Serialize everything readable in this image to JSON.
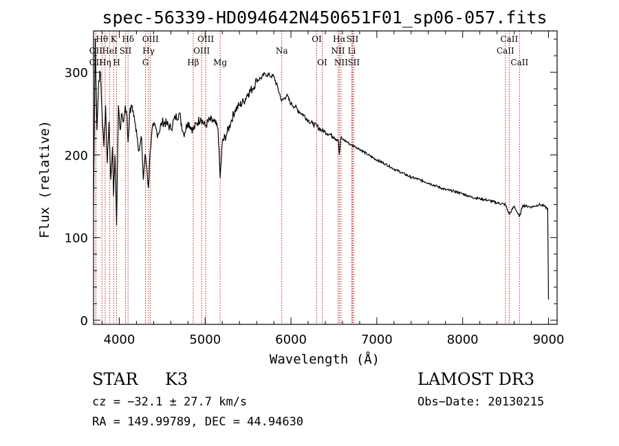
{
  "chart_data": {
    "type": "line",
    "title": "spec-56339-HD094642N450651F01_sp06-057.fits",
    "xlabel": "Wavelength (Å)",
    "ylabel": "Flux (relative)",
    "xlim": [
      3700,
      9100
    ],
    "ylim": [
      -5,
      350
    ],
    "xticks": [
      4000,
      5000,
      6000,
      7000,
      8000,
      9000
    ],
    "yticks": [
      0,
      100,
      200,
      300
    ],
    "series": [
      {
        "name": "flux",
        "x": [
          3700,
          3720,
          3740,
          3760,
          3780,
          3800,
          3820,
          3840,
          3860,
          3880,
          3900,
          3920,
          3933,
          3950,
          3968,
          3990,
          4010,
          4030,
          4050,
          4070,
          4090,
          4102,
          4120,
          4150,
          4180,
          4200,
          4230,
          4260,
          4280,
          4300,
          4320,
          4340,
          4360,
          4380,
          4400,
          4450,
          4500,
          4550,
          4600,
          4650,
          4700,
          4750,
          4800,
          4861,
          4900,
          4950,
          5000,
          5050,
          5100,
          5150,
          5175,
          5200,
          5250,
          5300,
          5350,
          5400,
          5450,
          5500,
          5550,
          5600,
          5650,
          5700,
          5750,
          5800,
          5850,
          5893,
          5950,
          6000,
          6050,
          6100,
          6150,
          6200,
          6250,
          6300,
          6350,
          6400,
          6450,
          6500,
          6550,
          6563,
          6580,
          6600,
          6650,
          6700,
          6750,
          6800,
          6900,
          7000,
          7100,
          7200,
          7300,
          7400,
          7500,
          7600,
          7700,
          7800,
          7900,
          8000,
          8100,
          8200,
          8300,
          8400,
          8498,
          8542,
          8600,
          8662,
          8700,
          8800,
          8900,
          8950,
          8990,
          9000
        ],
        "values": [
          140,
          340,
          230,
          290,
          300,
          250,
          210,
          260,
          190,
          240,
          170,
          210,
          150,
          200,
          115,
          260,
          230,
          250,
          240,
          260,
          245,
          215,
          250,
          260,
          240,
          230,
          205,
          220,
          170,
          200,
          185,
          160,
          205,
          230,
          235,
          225,
          240,
          238,
          232,
          245,
          250,
          225,
          240,
          230,
          238,
          245,
          235,
          242,
          240,
          232,
          172,
          215,
          225,
          240,
          255,
          260,
          265,
          275,
          280,
          290,
          293,
          298,
          296,
          295,
          280,
          265,
          272,
          262,
          258,
          252,
          248,
          242,
          238,
          235,
          230,
          228,
          225,
          222,
          218,
          200,
          220,
          219,
          216,
          212,
          210,
          207,
          200,
          194,
          189,
          183,
          178,
          173,
          170,
          166,
          162,
          158,
          156,
          153,
          149,
          147,
          145,
          142,
          140,
          128,
          138,
          125,
          139,
          137,
          140,
          138,
          135,
          25
        ]
      }
    ],
    "spectral_lines": [
      {
        "label": "Hθ",
        "wave": 3798,
        "row": 1
      },
      {
        "label": "OII",
        "wave": 3727,
        "row": 2
      },
      {
        "label": "HeI",
        "wave": 3889,
        "row": 2
      },
      {
        "label": "OII",
        "wave": 3727,
        "row": 3
      },
      {
        "label": "Hη",
        "wave": 3835,
        "row": 3
      },
      {
        "label": "K",
        "wave": 3934,
        "row": 1
      },
      {
        "label": "H",
        "wave": 3969,
        "row": 3
      },
      {
        "label": "SII",
        "wave": 4072,
        "row": 2
      },
      {
        "label": "Hδ",
        "wave": 4102,
        "row": 1
      },
      {
        "label": "OIII",
        "wave": 4363,
        "row": 1
      },
      {
        "label": "Hγ",
        "wave": 4341,
        "row": 2
      },
      {
        "label": "G",
        "wave": 4305,
        "row": 3
      },
      {
        "label": "Hβ",
        "wave": 4861,
        "row": 3
      },
      {
        "label": "OIII",
        "wave": 5007,
        "row": 1
      },
      {
        "label": "OIII",
        "wave": 4959,
        "row": 2
      },
      {
        "label": "Mg",
        "wave": 5175,
        "row": 3
      },
      {
        "label": "Na",
        "wave": 5893,
        "row": 2
      },
      {
        "label": "OI",
        "wave": 6300,
        "row": 1
      },
      {
        "label": "OI",
        "wave": 6364,
        "row": 3
      },
      {
        "label": "Hα",
        "wave": 6563,
        "row": 1
      },
      {
        "label": "NII",
        "wave": 6548,
        "row": 2
      },
      {
        "label": "NII",
        "wave": 6583,
        "row": 3
      },
      {
        "label": "SII",
        "wave": 6716,
        "row": 1
      },
      {
        "label": "Li",
        "wave": 6708,
        "row": 2
      },
      {
        "label": "SII",
        "wave": 6731,
        "row": 3
      },
      {
        "label": "CaII",
        "wave": 8542,
        "row": 1
      },
      {
        "label": "CaII",
        "wave": 8498,
        "row": 2
      },
      {
        "label": "CaII",
        "wave": 8662,
        "row": 3
      }
    ]
  },
  "info": {
    "object_class": "STAR",
    "subclass": "K3",
    "survey": "LAMOST DR3",
    "redshift": "cz = −32.1 ± 27.7 km/s",
    "obs_date": "Obs−Date: 20130215",
    "coords": "RA = 149.99789, DEC =  44.94630"
  },
  "colors": {
    "line_marker": "#b00000",
    "spectrum": "#000000"
  }
}
